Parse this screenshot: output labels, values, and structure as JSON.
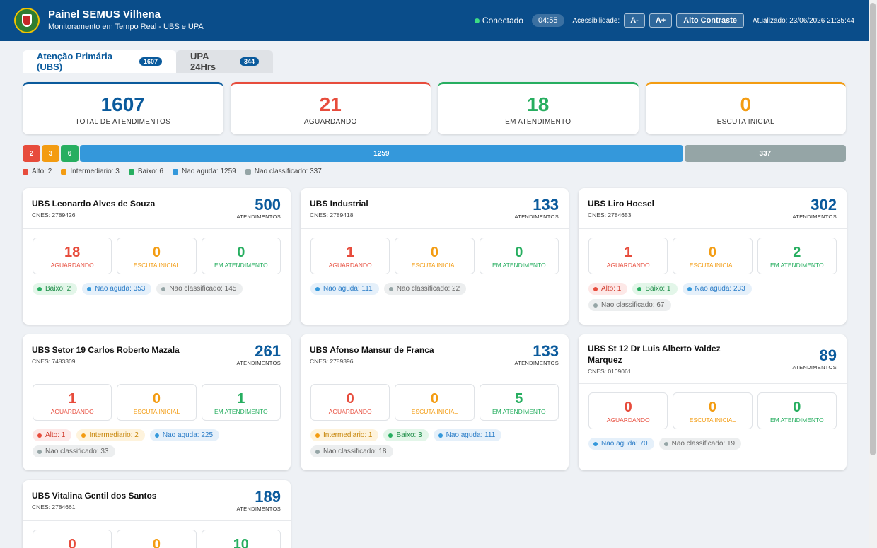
{
  "header": {
    "title": "Painel SEMUS Vilhena",
    "subtitle": "Monitoramento em Tempo Real - UBS e UPA",
    "status": "Conectado",
    "timer": "04:55",
    "accessibility_label": "Acessibilidade:",
    "font_decrease": "A-",
    "font_increase": "A+",
    "high_contrast": "Alto Contraste",
    "updated": "Atualizado: 23/06/2026 21:35:44"
  },
  "tabs": [
    {
      "label": "Atenção Primária (UBS)",
      "count": "1607"
    },
    {
      "label": "UPA 24Hrs",
      "count": "344"
    }
  ],
  "summary": [
    {
      "value": "1607",
      "label": "TOTAL DE ATENDIMENTOS",
      "color": "#0a5a9c"
    },
    {
      "value": "21",
      "label": "AGUARDANDO",
      "color": "#e74c3c"
    },
    {
      "value": "18",
      "label": "EM ATENDIMENTO",
      "color": "#27ae60"
    },
    {
      "value": "0",
      "label": "ESCUTA INICIAL",
      "color": "#f39c12"
    }
  ],
  "risk_bar": [
    {
      "value": 2,
      "color": "#e74c3c"
    },
    {
      "value": 3,
      "color": "#f39c12"
    },
    {
      "value": 6,
      "color": "#27ae60"
    },
    {
      "value": 1259,
      "color": "#3498db"
    },
    {
      "value": 337,
      "color": "#95a5a6"
    }
  ],
  "legend": [
    {
      "label": "Alto: 2",
      "color": "#e74c3c"
    },
    {
      "label": "Intermediario: 3",
      "color": "#f39c12"
    },
    {
      "label": "Baixo: 6",
      "color": "#27ae60"
    },
    {
      "label": "Nao aguda: 1259",
      "color": "#3498db"
    },
    {
      "label": "Nao classificado: 337",
      "color": "#95a5a6"
    }
  ],
  "stat_labels": {
    "waiting": "AGUARDANDO",
    "initial": "ESCUTA INICIAL",
    "in_care": "EM ATENDIMENTO",
    "total": "ATENDIMENTOS"
  },
  "units": [
    {
      "name": "UBS Leonardo Alves de Souza",
      "cnes": "CNES: 2789426",
      "total": "500",
      "waiting": "18",
      "initial": "0",
      "in_care": "0",
      "pills": [
        {
          "type": "baixo",
          "label": "Baixo: 2"
        },
        {
          "type": "nao",
          "label": "Nao aguda: 353"
        },
        {
          "type": "ncl",
          "label": "Nao classificado: 145"
        }
      ]
    },
    {
      "name": "UBS Industrial",
      "cnes": "CNES: 2789418",
      "total": "133",
      "waiting": "1",
      "initial": "0",
      "in_care": "0",
      "pills": [
        {
          "type": "nao",
          "label": "Nao aguda: 111"
        },
        {
          "type": "ncl",
          "label": "Nao classificado: 22"
        }
      ]
    },
    {
      "name": "UBS Liro Hoesel",
      "cnes": "CNES: 2784653",
      "total": "302",
      "waiting": "1",
      "initial": "0",
      "in_care": "2",
      "pills": [
        {
          "type": "alto",
          "label": "Alto: 1"
        },
        {
          "type": "baixo",
          "label": "Baixo: 1"
        },
        {
          "type": "nao",
          "label": "Nao aguda: 233"
        },
        {
          "type": "ncl",
          "label": "Nao classificado: 67"
        }
      ]
    },
    {
      "name": "UBS Setor 19 Carlos Roberto Mazala",
      "cnes": "CNES: 7483309",
      "total": "261",
      "waiting": "1",
      "initial": "0",
      "in_care": "1",
      "pills": [
        {
          "type": "alto",
          "label": "Alto: 1"
        },
        {
          "type": "inter",
          "label": "Intermediario: 2"
        },
        {
          "type": "nao",
          "label": "Nao aguda: 225"
        },
        {
          "type": "ncl",
          "label": "Nao classificado: 33"
        }
      ]
    },
    {
      "name": "UBS Afonso Mansur de Franca",
      "cnes": "CNES: 2789396",
      "total": "133",
      "waiting": "0",
      "initial": "0",
      "in_care": "5",
      "pills": [
        {
          "type": "inter",
          "label": "Intermediario: 1"
        },
        {
          "type": "baixo",
          "label": "Baixo: 3"
        },
        {
          "type": "nao",
          "label": "Nao aguda: 111"
        },
        {
          "type": "ncl",
          "label": "Nao classificado: 18"
        }
      ]
    },
    {
      "name": "UBS St 12 Dr Luis Alberto Valdez Marquez",
      "cnes": "CNES: 0109061",
      "total": "89",
      "waiting": "0",
      "initial": "0",
      "in_care": "0",
      "pills": [
        {
          "type": "nao",
          "label": "Nao aguda: 70"
        },
        {
          "type": "ncl",
          "label": "Nao classificado: 19"
        }
      ]
    },
    {
      "name": "UBS Vitalina Gentil dos Santos",
      "cnes": "CNES: 2784661",
      "total": "189",
      "waiting": "0",
      "initial": "0",
      "in_care": "10",
      "pills": []
    }
  ]
}
